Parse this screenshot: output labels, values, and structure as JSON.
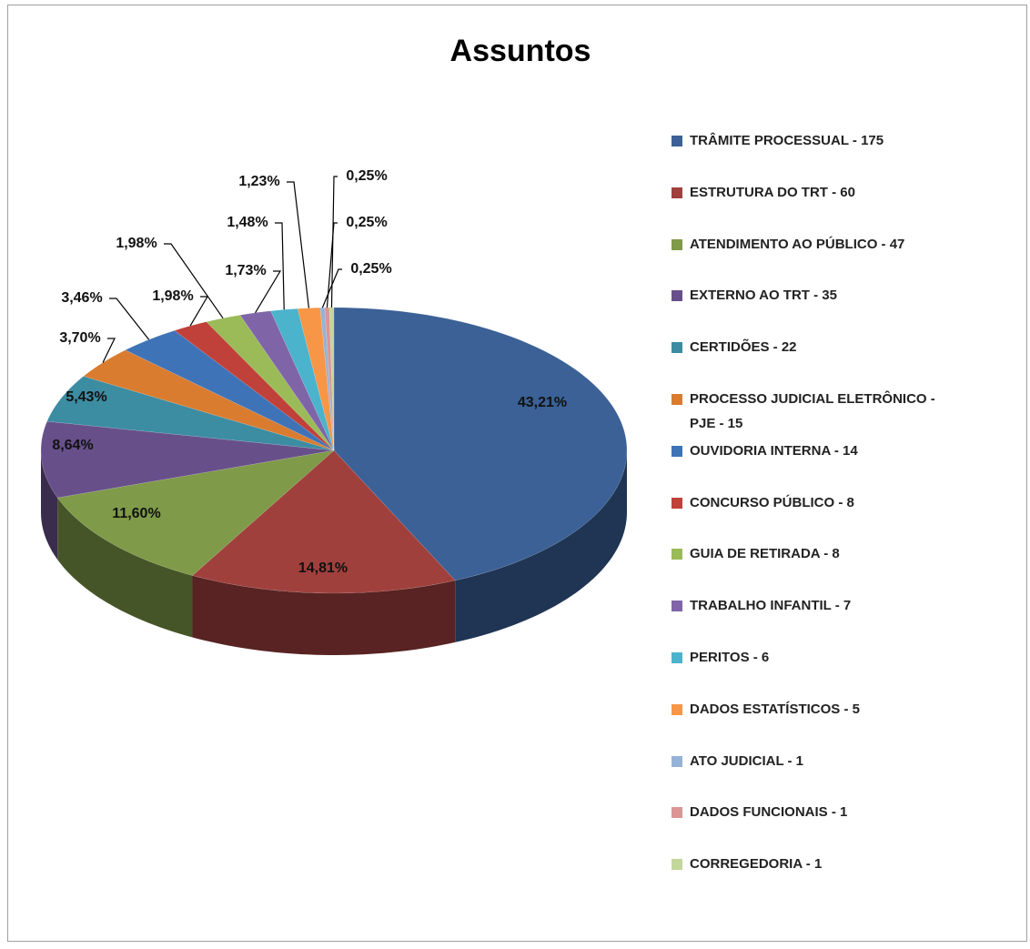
{
  "chart_data": {
    "type": "pie",
    "title": "Assuntos",
    "categories": [
      "TRÂMITE PROCESSUAL - 175",
      "ESTRUTURA DO TRT - 60",
      "ATENDIMENTO AO PÚBLICO - 47",
      "EXTERNO AO TRT - 35",
      "CERTIDÕES - 22",
      "PROCESSO JUDICIAL ELETRÔNICO - PJE - 15",
      "OUVIDORIA INTERNA - 14",
      "CONCURSO PÚBLICO - 8",
      "GUIA DE RETIRADA - 8",
      "TRABALHO INFANTIL - 7",
      "PERITOS - 6",
      "DADOS ESTATÍSTICOS - 5",
      "ATO JUDICIAL - 1",
      "DADOS FUNCIONAIS - 1",
      "CORREGEDORIA - 1"
    ],
    "values": [
      43.21,
      14.81,
      11.6,
      8.64,
      5.43,
      3.7,
      3.46,
      1.98,
      1.98,
      1.73,
      1.48,
      1.23,
      0.25,
      0.25,
      0.25
    ],
    "value_labels": [
      "43,21%",
      "14,81%",
      "11,60%",
      "8,64%",
      "5,43%",
      "3,70%",
      "3,46%",
      "1,98%",
      "1,98%",
      "1,73%",
      "1,48%",
      "1,23%",
      "0,25%",
      "0,25%",
      "0,25%"
    ],
    "colors": [
      "#3b6196",
      "#a0403d",
      "#7f9a48",
      "#67508a",
      "#3c8ca2",
      "#d97c30",
      "#3f73b8",
      "#c0403a",
      "#9bbb59",
      "#7f65a8",
      "#4bb3cc",
      "#f79646",
      "#95b3d7",
      "#d99694",
      "#c3d69b"
    ],
    "legend": "right"
  }
}
